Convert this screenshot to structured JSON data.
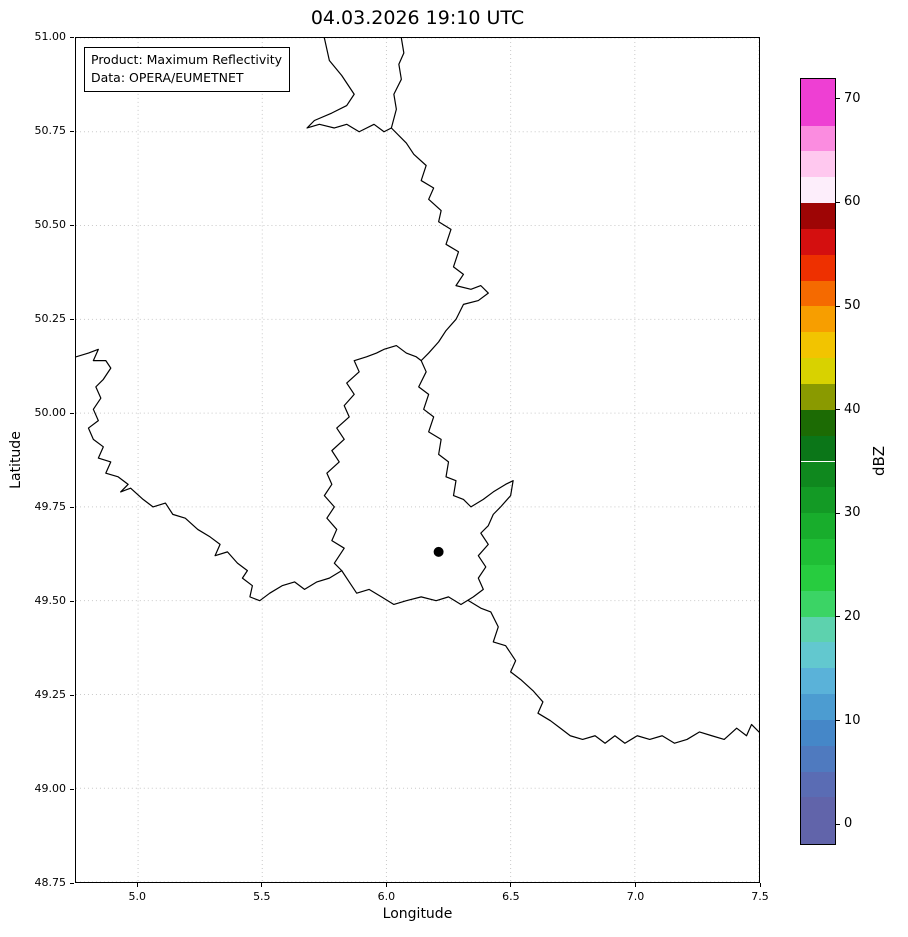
{
  "chart_data": {
    "type": "heatmap",
    "description": "Weather radar maximum reflectivity composite over the Luxembourg / Belgium / Germany / France border region; no precipitation echoes visible (map area blank), only country borders, grid and the radar site marker.",
    "title": "04.03.2026 19:10 UTC",
    "xlabel": "Longitude",
    "ylabel": "Latitude",
    "xlim": [
      4.75,
      7.5
    ],
    "ylim": [
      48.75,
      51.0
    ],
    "x_ticks": {
      "values": [
        5.0,
        5.5,
        6.0,
        6.5,
        7.0,
        7.5
      ],
      "labels": [
        "5.0",
        "5.5",
        "6.0",
        "6.5",
        "7.0",
        "7.5"
      ]
    },
    "y_ticks": {
      "values": [
        48.75,
        49.0,
        49.25,
        49.5,
        49.75,
        50.0,
        50.25,
        50.5,
        50.75,
        51.0
      ],
      "labels": [
        "48.75",
        "49.00",
        "49.25",
        "49.50",
        "49.75",
        "50.00",
        "50.25",
        "50.50",
        "50.75",
        "51.00"
      ]
    },
    "grid": {
      "visible": true,
      "style": "dotted",
      "color": "#c9c9c9"
    },
    "annotation_box": {
      "lines": [
        "Product: Maximum Reflectivity",
        "Data: OPERA/EUMETNET"
      ]
    },
    "radar_site_marker": {
      "lon": 6.21,
      "lat": 49.63,
      "color": "#000000",
      "radius_px": 5
    },
    "echoes": [],
    "colorbar": {
      "label": "dBZ",
      "vmin": -2,
      "vmax": 72,
      "tick_values": [
        0,
        10,
        20,
        30,
        40,
        50,
        60,
        70
      ],
      "tick_labels": [
        "0",
        "10",
        "20",
        "30",
        "40",
        "50",
        "60",
        "70"
      ],
      "segments": [
        {
          "from": -2,
          "to": 2.5,
          "color": "#6164aa"
        },
        {
          "from": 2.5,
          "to": 5,
          "color": "#5a6cb4"
        },
        {
          "from": 5,
          "to": 7.5,
          "color": "#4f7abf"
        },
        {
          "from": 7.5,
          "to": 10,
          "color": "#4587c8"
        },
        {
          "from": 10,
          "to": 12.5,
          "color": "#4c9cd1"
        },
        {
          "from": 12.5,
          "to": 15,
          "color": "#5ab2d9"
        },
        {
          "from": 15,
          "to": 17.5,
          "color": "#62c8cf"
        },
        {
          "from": 17.5,
          "to": 20,
          "color": "#5dd2ae"
        },
        {
          "from": 20,
          "to": 22.5,
          "color": "#3bd465"
        },
        {
          "from": 22.5,
          "to": 25,
          "color": "#27cc3f"
        },
        {
          "from": 25,
          "to": 27.5,
          "color": "#1fbe35"
        },
        {
          "from": 27.5,
          "to": 30,
          "color": "#18ad2c"
        },
        {
          "from": 30,
          "to": 32.5,
          "color": "#139a25"
        },
        {
          "from": 32.5,
          "to": 35,
          "color": "#0f881e"
        },
        {
          "from": 35,
          "to": 37.5,
          "color": "#0b7618"
        },
        {
          "from": 37.5,
          "to": 40,
          "color": "#1c6b04"
        },
        {
          "from": 40,
          "to": 42.5,
          "color": "#8a9a00"
        },
        {
          "from": 42.5,
          "to": 45,
          "color": "#d8d200"
        },
        {
          "from": 45,
          "to": 47.5,
          "color": "#f2c400"
        },
        {
          "from": 47.5,
          "to": 50,
          "color": "#f79e00"
        },
        {
          "from": 50,
          "to": 52.5,
          "color": "#f56a00"
        },
        {
          "from": 52.5,
          "to": 55,
          "color": "#ee3000"
        },
        {
          "from": 55,
          "to": 57.5,
          "color": "#d40f0f"
        },
        {
          "from": 57.5,
          "to": 60,
          "color": "#9e0505"
        },
        {
          "from": 60,
          "to": 62.5,
          "color": "#fdeefb"
        },
        {
          "from": 62.5,
          "to": 65,
          "color": "#ffc8ef"
        },
        {
          "from": 65,
          "to": 67.5,
          "color": "#fb8ce0"
        },
        {
          "from": 67.5,
          "to": 72,
          "color": "#ee3fd3"
        }
      ]
    },
    "borders": {
      "color": "#000000",
      "stroke_width": 1.2,
      "paths": [
        [
          [
            5.75,
            51.0
          ],
          [
            5.77,
            50.94
          ],
          [
            5.82,
            50.9
          ],
          [
            5.87,
            50.85
          ],
          [
            5.84,
            50.82
          ],
          [
            5.78,
            50.8
          ],
          [
            5.71,
            50.78
          ],
          [
            5.68,
            50.76
          ],
          [
            5.73,
            50.77
          ],
          [
            5.79,
            50.76
          ],
          [
            5.84,
            50.77
          ],
          [
            5.89,
            50.75
          ],
          [
            5.95,
            50.77
          ],
          [
            5.99,
            50.75
          ],
          [
            6.02,
            50.76
          ],
          [
            6.04,
            50.81
          ],
          [
            6.03,
            50.85
          ],
          [
            6.06,
            50.89
          ],
          [
            6.05,
            50.93
          ],
          [
            6.07,
            50.96
          ],
          [
            6.06,
            51.0
          ]
        ],
        [
          [
            6.02,
            50.76
          ],
          [
            6.08,
            50.72
          ],
          [
            6.11,
            50.69
          ],
          [
            6.16,
            50.66
          ],
          [
            6.14,
            50.62
          ],
          [
            6.19,
            50.6
          ],
          [
            6.17,
            50.57
          ],
          [
            6.22,
            50.54
          ],
          [
            6.21,
            50.51
          ],
          [
            6.26,
            50.49
          ],
          [
            6.24,
            50.45
          ],
          [
            6.29,
            50.43
          ],
          [
            6.27,
            50.39
          ],
          [
            6.31,
            50.37
          ],
          [
            6.28,
            50.34
          ],
          [
            6.34,
            50.33
          ],
          [
            6.38,
            50.34
          ],
          [
            6.41,
            50.32
          ],
          [
            6.37,
            50.3
          ],
          [
            6.31,
            50.29
          ],
          [
            6.28,
            50.25
          ],
          [
            6.24,
            50.22
          ],
          [
            6.21,
            50.19
          ],
          [
            6.17,
            50.16
          ],
          [
            6.14,
            50.14
          ]
        ],
        [
          [
            5.99,
            50.17
          ],
          [
            6.04,
            50.18
          ],
          [
            6.08,
            50.16
          ],
          [
            6.12,
            50.15
          ],
          [
            6.14,
            50.14
          ],
          [
            6.16,
            50.11
          ],
          [
            6.13,
            50.07
          ],
          [
            6.17,
            50.05
          ],
          [
            6.15,
            50.01
          ],
          [
            6.19,
            49.99
          ],
          [
            6.17,
            49.95
          ],
          [
            6.22,
            49.93
          ],
          [
            6.21,
            49.89
          ],
          [
            6.25,
            49.87
          ],
          [
            6.24,
            49.83
          ],
          [
            6.28,
            49.82
          ],
          [
            6.27,
            49.78
          ],
          [
            6.31,
            49.77
          ],
          [
            6.34,
            49.75
          ],
          [
            6.39,
            49.77
          ],
          [
            6.43,
            49.79
          ],
          [
            6.48,
            49.81
          ],
          [
            6.51,
            49.82
          ],
          [
            6.5,
            49.78
          ],
          [
            6.46,
            49.75
          ],
          [
            6.43,
            49.73
          ],
          [
            6.41,
            49.7
          ],
          [
            6.38,
            49.68
          ],
          [
            6.41,
            49.65
          ],
          [
            6.37,
            49.62
          ],
          [
            6.4,
            49.59
          ],
          [
            6.37,
            49.56
          ],
          [
            6.39,
            49.53
          ],
          [
            6.35,
            49.51
          ],
          [
            6.3,
            49.49
          ],
          [
            6.25,
            49.51
          ],
          [
            6.2,
            49.5
          ],
          [
            6.14,
            49.51
          ],
          [
            6.08,
            49.5
          ],
          [
            6.03,
            49.49
          ],
          [
            5.98,
            49.51
          ],
          [
            5.93,
            49.53
          ],
          [
            5.88,
            49.52
          ],
          [
            5.85,
            49.55
          ],
          [
            5.82,
            49.58
          ],
          [
            5.79,
            49.6
          ],
          [
            5.83,
            49.64
          ],
          [
            5.78,
            49.66
          ],
          [
            5.8,
            49.69
          ],
          [
            5.76,
            49.72
          ],
          [
            5.79,
            49.75
          ],
          [
            5.75,
            49.78
          ],
          [
            5.78,
            49.81
          ],
          [
            5.76,
            49.84
          ],
          [
            5.81,
            49.87
          ],
          [
            5.78,
            49.9
          ],
          [
            5.83,
            49.93
          ],
          [
            5.8,
            49.96
          ],
          [
            5.85,
            49.99
          ],
          [
            5.83,
            50.02
          ],
          [
            5.87,
            50.05
          ],
          [
            5.84,
            50.08
          ],
          [
            5.89,
            50.11
          ],
          [
            5.87,
            50.14
          ],
          [
            5.92,
            50.15
          ],
          [
            5.96,
            50.16
          ],
          [
            5.99,
            50.17
          ]
        ],
        [
          [
            4.75,
            50.15
          ],
          [
            4.8,
            50.16
          ],
          [
            4.84,
            50.17
          ],
          [
            4.82,
            50.14
          ],
          [
            4.87,
            50.14
          ],
          [
            4.89,
            50.12
          ],
          [
            4.86,
            50.09
          ],
          [
            4.83,
            50.07
          ],
          [
            4.85,
            50.04
          ],
          [
            4.82,
            50.01
          ],
          [
            4.84,
            49.98
          ],
          [
            4.8,
            49.96
          ],
          [
            4.82,
            49.93
          ],
          [
            4.86,
            49.91
          ],
          [
            4.84,
            49.88
          ],
          [
            4.89,
            49.87
          ],
          [
            4.87,
            49.84
          ],
          [
            4.92,
            49.83
          ],
          [
            4.96,
            49.81
          ],
          [
            4.93,
            49.79
          ],
          [
            4.97,
            49.8
          ],
          [
            5.02,
            49.77
          ],
          [
            5.06,
            49.75
          ],
          [
            5.11,
            49.76
          ],
          [
            5.14,
            49.73
          ],
          [
            5.19,
            49.72
          ],
          [
            5.24,
            49.69
          ],
          [
            5.29,
            49.67
          ],
          [
            5.33,
            49.65
          ],
          [
            5.31,
            49.62
          ],
          [
            5.36,
            49.63
          ],
          [
            5.4,
            49.6
          ],
          [
            5.44,
            49.58
          ],
          [
            5.42,
            49.56
          ],
          [
            5.46,
            49.54
          ],
          [
            5.45,
            49.51
          ],
          [
            5.49,
            49.5
          ],
          [
            5.53,
            49.52
          ],
          [
            5.58,
            49.54
          ],
          [
            5.63,
            49.55
          ],
          [
            5.67,
            49.53
          ],
          [
            5.72,
            49.55
          ],
          [
            5.77,
            49.56
          ],
          [
            5.82,
            49.58
          ]
        ],
        [
          [
            6.33,
            49.5
          ],
          [
            6.38,
            49.48
          ],
          [
            6.42,
            49.47
          ],
          [
            6.45,
            49.43
          ],
          [
            6.43,
            49.39
          ],
          [
            6.48,
            49.38
          ],
          [
            6.52,
            49.34
          ],
          [
            6.5,
            49.31
          ],
          [
            6.54,
            49.29
          ],
          [
            6.59,
            49.26
          ],
          [
            6.63,
            49.23
          ],
          [
            6.61,
            49.2
          ],
          [
            6.66,
            49.18
          ],
          [
            6.7,
            49.16
          ],
          [
            6.74,
            49.14
          ],
          [
            6.79,
            49.13
          ],
          [
            6.84,
            49.14
          ],
          [
            6.88,
            49.12
          ],
          [
            6.92,
            49.14
          ],
          [
            6.96,
            49.12
          ],
          [
            7.01,
            49.14
          ],
          [
            7.06,
            49.13
          ],
          [
            7.11,
            49.14
          ],
          [
            7.16,
            49.12
          ],
          [
            7.21,
            49.13
          ],
          [
            7.26,
            49.15
          ],
          [
            7.31,
            49.14
          ],
          [
            7.36,
            49.13
          ],
          [
            7.41,
            49.16
          ],
          [
            7.45,
            49.14
          ],
          [
            7.47,
            49.17
          ],
          [
            7.5,
            49.15
          ]
        ]
      ]
    }
  }
}
